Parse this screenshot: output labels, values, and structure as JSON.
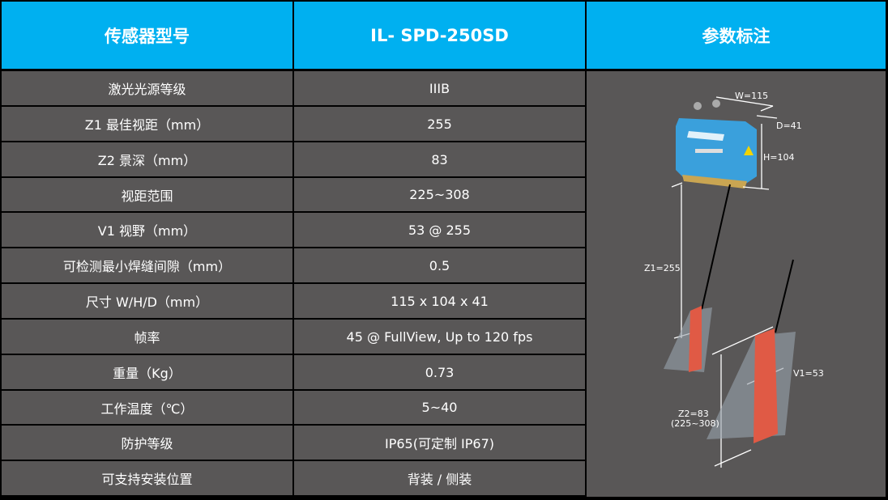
{
  "header": {
    "col1": "传感器型号",
    "col2": "IL- SPD-250SD",
    "col3": "参数标注"
  },
  "rows": [
    {
      "label": "激光光源等级",
      "value": "IIIB"
    },
    {
      "label": "Z1 最佳视距（mm）",
      "value": "255"
    },
    {
      "label": "Z2 景深（mm）",
      "value": "83"
    },
    {
      "label": "视距范围",
      "value": "225~308"
    },
    {
      "label": "V1 视野（mm）",
      "value": "53 @ 255"
    },
    {
      "label": "可检测最小焊缝间隙（mm）",
      "value": "0.5"
    },
    {
      "label": "尺寸 W/H/D（mm）",
      "value": "115 x 104 x 41"
    },
    {
      "label": "帧率",
      "value": "45 @ FullView, Up to 120 fps"
    },
    {
      "label": "重量（Kg）",
      "value": "0.73"
    },
    {
      "label": "工作温度（℃）",
      "value": "5~40"
    },
    {
      "label": "防护等级",
      "value": "IP65(可定制 IP67)"
    },
    {
      "label": "可支持安装位置",
      "value": "背装 / 侧装"
    }
  ],
  "diagram": {
    "w_label": "W=115",
    "d_label": "D=41",
    "h_label": "H=104",
    "z1_label": "Z1=255",
    "v1_label": "V1=53",
    "z2_label": "Z2=83",
    "z2_range": "(225~308)"
  },
  "colors": {
    "header": "#00b0f0",
    "cell": "#595757",
    "border": "#000000",
    "laser": "#e05a45",
    "sensor": "#3aa0dc"
  }
}
